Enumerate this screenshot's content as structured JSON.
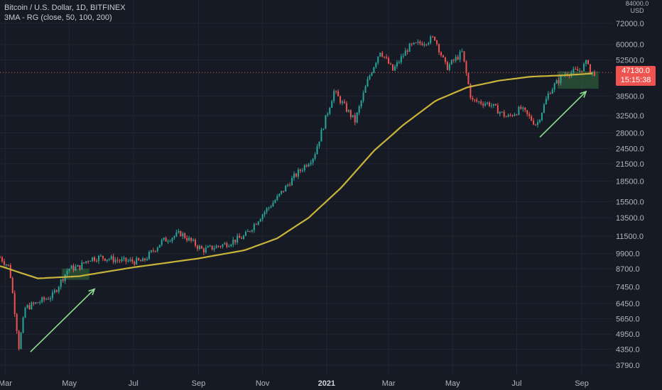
{
  "legend": {
    "symbol_line": "Bitcoin / U.S. Dollar, 1D, BITFINEX",
    "indicator_line": "3MA - RG (close, 50, 100, 200)"
  },
  "price_axis": {
    "currency": "USD",
    "top_label": "84000.0",
    "ticks": [
      "72000.0",
      "60000.0",
      "52500.0",
      "38500.0",
      "32500.0",
      "28000.0",
      "24500.0",
      "21500.0",
      "18500.0",
      "15500.0",
      "13500.0",
      "11500.0",
      "9900.0",
      "8700.0",
      "7450.0",
      "6450.0",
      "5650.0",
      "4950.0",
      "4350.0",
      "3790.0"
    ],
    "last_price": "47130.0",
    "countdown": "15:15:38",
    "last_price_color": "#ef5350"
  },
  "time_axis": {
    "ticks": [
      "Mar",
      "May",
      "Jul",
      "Sep",
      "Nov",
      "2021",
      "Mar",
      "May",
      "Jul",
      "Sep"
    ]
  },
  "colors": {
    "background": "#161a25",
    "up_candle": "#26a69a",
    "down_candle": "#ef5350",
    "ma_line": "#c8b43a",
    "arrow": "#8de08d",
    "zone_fill": "#4caf50"
  },
  "chart_data": {
    "type": "candlestick",
    "title": "Bitcoin / U.S. Dollar, 1D, BITFINEX",
    "scale": "log",
    "ylim": [
      3500,
      88000
    ],
    "x": [
      "2020-03",
      "2020-05",
      "2020-07",
      "2020-09",
      "2020-11",
      "2021-01",
      "2021-03",
      "2021-05",
      "2021-07",
      "2021-09"
    ],
    "close_path": [
      [
        "2020-02-25",
        9600
      ],
      [
        "2020-03-05",
        8800
      ],
      [
        "2020-03-12",
        5200
      ],
      [
        "2020-03-13",
        4200
      ],
      [
        "2020-03-20",
        6200
      ],
      [
        "2020-04-01",
        6500
      ],
      [
        "2020-04-15",
        6900
      ],
      [
        "2020-04-30",
        8700
      ],
      [
        "2020-05-10",
        8800
      ],
      [
        "2020-05-20",
        9500
      ],
      [
        "2020-06-01",
        9600
      ],
      [
        "2020-06-20",
        9300
      ],
      [
        "2020-07-10",
        9250
      ],
      [
        "2020-07-28",
        11000
      ],
      [
        "2020-08-15",
        11800
      ],
      [
        "2020-09-05",
        10200
      ],
      [
        "2020-09-25",
        10700
      ],
      [
        "2020-10-15",
        11500
      ],
      [
        "2020-10-31",
        13800
      ],
      [
        "2020-11-15",
        16000
      ],
      [
        "2020-11-30",
        19000
      ],
      [
        "2020-12-20",
        23000
      ],
      [
        "2021-01-08",
        40000
      ],
      [
        "2021-01-28",
        31000
      ],
      [
        "2021-02-10",
        45000
      ],
      [
        "2021-02-21",
        57000
      ],
      [
        "2021-03-05",
        48000
      ],
      [
        "2021-03-20",
        58500
      ],
      [
        "2021-04-14",
        63500
      ],
      [
        "2021-04-25",
        49000
      ],
      [
        "2021-05-10",
        56000
      ],
      [
        "2021-05-19",
        37000
      ],
      [
        "2021-06-05",
        36000
      ],
      [
        "2021-06-22",
        32000
      ],
      [
        "2021-07-05",
        34500
      ],
      [
        "2021-07-20",
        30000
      ],
      [
        "2021-08-01",
        40000
      ],
      [
        "2021-08-15",
        46500
      ],
      [
        "2021-08-30",
        48000
      ],
      [
        "2021-09-07",
        52000
      ],
      [
        "2021-09-08",
        46500
      ],
      [
        "2021-09-13",
        47130
      ]
    ],
    "series": [
      {
        "indicator": "3MA - RG (close, 50, 100, 200)",
        "points": [
          [
            "2020-02-25",
            8900
          ],
          [
            "2020-04-01",
            8000
          ],
          [
            "2020-05-10",
            8150
          ],
          [
            "2020-07-01",
            8800
          ],
          [
            "2020-09-01",
            9500
          ],
          [
            "2020-10-15",
            10200
          ],
          [
            "2020-11-15",
            11300
          ],
          [
            "2020-12-15",
            13500
          ],
          [
            "2021-01-15",
            17500
          ],
          [
            "2021-02-15",
            24000
          ],
          [
            "2021-03-15",
            30000
          ],
          [
            "2021-04-15",
            37000
          ],
          [
            "2021-05-15",
            41500
          ],
          [
            "2021-06-15",
            44000
          ],
          [
            "2021-07-15",
            45500
          ],
          [
            "2021-08-15",
            46000
          ],
          [
            "2021-09-13",
            46800
          ]
        ]
      }
    ],
    "annotations": [
      {
        "type": "zone",
        "from": "2020-04-24",
        "to": "2020-05-20",
        "low": 7900,
        "high": 8700
      },
      {
        "type": "zone",
        "from": "2021-08-09",
        "to": "2021-09-17",
        "low": 41000,
        "high": 47600
      },
      {
        "type": "arrow",
        "from": [
          "2020-03-25",
          4250
        ],
        "to": [
          "2020-05-25",
          7300
        ]
      },
      {
        "type": "arrow",
        "from": [
          "2021-07-23",
          27000
        ],
        "to": [
          "2021-09-05",
          40000
        ]
      }
    ]
  }
}
